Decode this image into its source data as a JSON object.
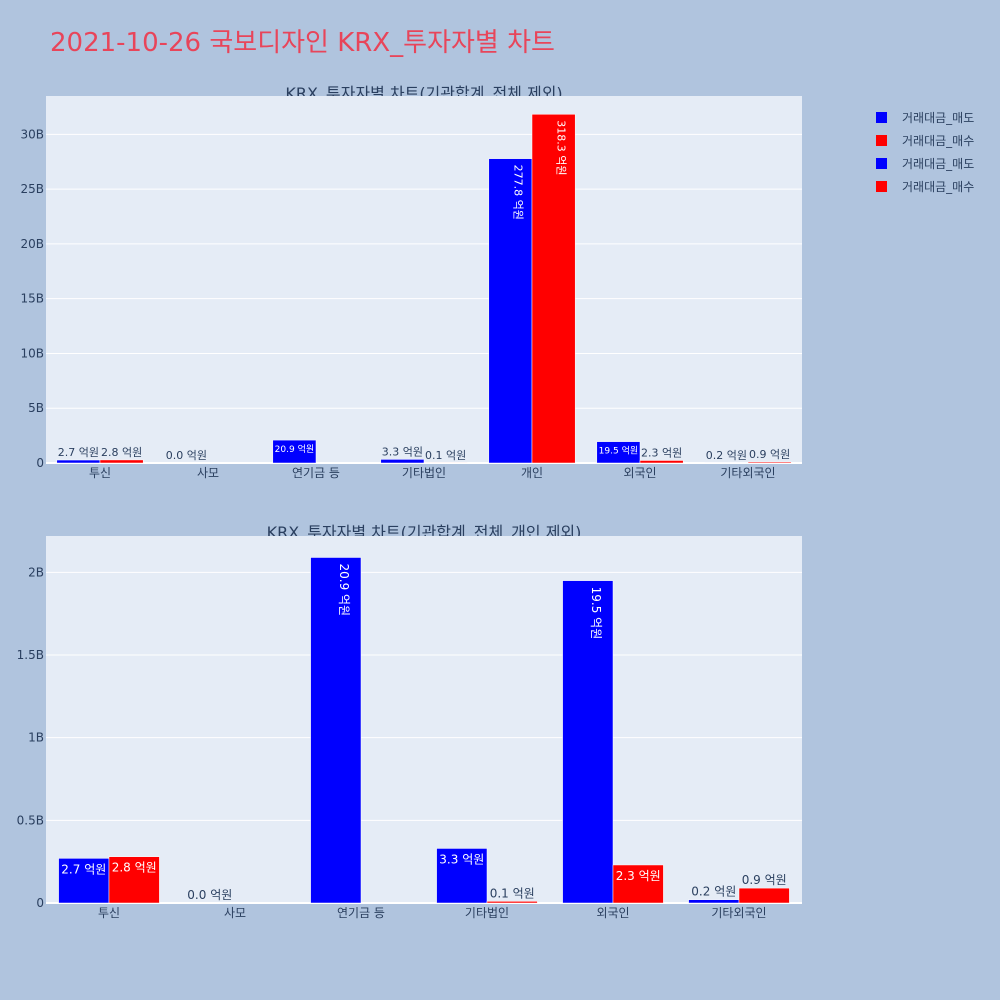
{
  "title": "2021-10-26 국보디자인 KRX_투자자별 차트",
  "legend": [
    {
      "label": "거래대금_매도",
      "color": "#0000ff"
    },
    {
      "label": "거래대금_매수",
      "color": "#ff0000"
    },
    {
      "label": "거래대금_매도",
      "color": "#0000ff"
    },
    {
      "label": "거래대금_매수",
      "color": "#ff0000"
    }
  ],
  "chart_data": [
    {
      "type": "bar",
      "title": "KRX_투자자별 차트(기관합계_전체 제외)",
      "categories": [
        "투신",
        "사모",
        "연기금 등",
        "기타법인",
        "개인",
        "외국인",
        "기타외국인"
      ],
      "ylim": [
        0,
        33500000000
      ],
      "yticks": [
        0,
        5000000000,
        10000000000,
        15000000000,
        20000000000,
        25000000000,
        30000000000
      ],
      "ytick_labels": [
        "0",
        "5B",
        "10B",
        "15B",
        "20B",
        "25B",
        "30B"
      ],
      "series": [
        {
          "name": "거래대금_매도",
          "color": "#0000ff",
          "values": [
            270000000,
            0,
            2090000000,
            330000000,
            27780000000,
            1950000000,
            20000000
          ],
          "labels": [
            "2.7 억원",
            "0.0 억원",
            "20.9 억원",
            "3.3 억원",
            "277.8 억원",
            "19.5 억원",
            "0.2 억원"
          ]
        },
        {
          "name": "거래대금_매수",
          "color": "#ff0000",
          "values": [
            280000000,
            0,
            0,
            10000000,
            31830000000,
            230000000,
            90000000
          ],
          "labels": [
            "2.8 억원",
            "",
            "",
            "0.1 억원",
            "318.3 억원",
            "2.3 억원",
            "0.9 억원"
          ]
        }
      ]
    },
    {
      "type": "bar",
      "title": "KRX_투자자별 차트(기관합계_전체_개인 제외)",
      "categories": [
        "투신",
        "사모",
        "연기금 등",
        "기타법인",
        "외국인",
        "기타외국인"
      ],
      "ylim": [
        0,
        2220000000
      ],
      "yticks": [
        0,
        500000000,
        1000000000,
        1500000000,
        2000000000
      ],
      "ytick_labels": [
        "0",
        "0.5B",
        "1B",
        "1.5B",
        "2B"
      ],
      "series": [
        {
          "name": "거래대금_매도",
          "color": "#0000ff",
          "values": [
            270000000,
            0,
            2090000000,
            330000000,
            1950000000,
            20000000
          ],
          "labels": [
            "2.7 억원",
            "0.0 억원",
            "20.9 억원",
            "3.3 억원",
            "19.5 억원",
            "0.2 억원"
          ]
        },
        {
          "name": "거래대금_매수",
          "color": "#ff0000",
          "values": [
            280000000,
            0,
            0,
            10000000,
            230000000,
            90000000
          ],
          "labels": [
            "2.8 억원",
            "",
            "",
            "0.1 억원",
            "2.3 억원",
            "0.9 억원"
          ]
        }
      ]
    }
  ]
}
